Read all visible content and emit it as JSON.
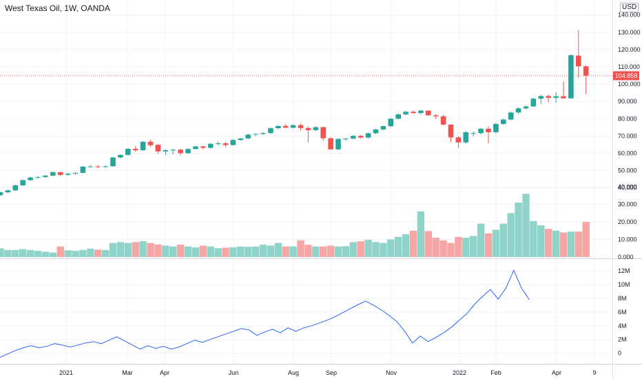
{
  "title": "West Texas Oil, 1W, OANDA",
  "currency": "USD",
  "price_label": "104.858",
  "colors": {
    "up": "#26a69a",
    "down": "#ef5350",
    "up_vol": "#8fd3c9",
    "down_vol": "#f6a6a4",
    "line": "#2962ff",
    "grid": "#f0f3fa"
  },
  "chart_data": [
    {
      "type": "candlestick",
      "price_axis_ticks": [
        "140.000",
        "130.000",
        "120.000",
        "110.000",
        "100.000",
        "90.000",
        "80.000",
        "70.000",
        "60.000",
        "50.000",
        "40.000",
        "30.000",
        "20.000",
        "10.000",
        "0.000"
      ],
      "x_tick_labels": [
        "2021",
        "Mar",
        "Apr",
        "Jun",
        "Aug",
        "Sep",
        "Nov",
        "2022",
        "Feb",
        "Apr",
        "9"
      ],
      "last_price": 104.858,
      "ohlc": [
        [
          35.8,
          37.8,
          35.5,
          37.5
        ],
        [
          37.5,
          38.9,
          36.9,
          38.6
        ],
        [
          38.6,
          41.9,
          38.2,
          41.5
        ],
        [
          41.5,
          44.8,
          41.2,
          44.5
        ],
        [
          44.5,
          46.5,
          44.0,
          46.0
        ],
        [
          46.0,
          46.8,
          45.3,
          46.3
        ],
        [
          46.3,
          47.5,
          45.9,
          47.1
        ],
        [
          47.1,
          49.5,
          46.8,
          49.1
        ],
        [
          49.1,
          49.3,
          46.8,
          47.5
        ],
        [
          47.6,
          48.6,
          47.1,
          48.3
        ],
        [
          48.3,
          49.1,
          47.7,
          48.7
        ],
        [
          48.7,
          52.6,
          48.4,
          52.3
        ],
        [
          52.3,
          53.2,
          51.8,
          52.4
        ],
        [
          52.4,
          53.3,
          51.5,
          52.2
        ],
        [
          52.2,
          53.1,
          51.7,
          52.5
        ],
        [
          52.5,
          57.9,
          52.3,
          57.6
        ],
        [
          57.6,
          59.4,
          57.1,
          59.1
        ],
        [
          59.1,
          63.0,
          58.7,
          62.6
        ],
        [
          62.6,
          64.2,
          60.8,
          61.8
        ],
        [
          61.8,
          67.1,
          61.4,
          66.7
        ],
        [
          66.7,
          67.8,
          63.8,
          64.7
        ],
        [
          64.9,
          65.5,
          59.7,
          61.1
        ],
        [
          61.1,
          62.2,
          58.8,
          61.8
        ],
        [
          61.9,
          62.6,
          59.4,
          62.1
        ],
        [
          62.1,
          62.7,
          58.9,
          60.1
        ],
        [
          60.1,
          63.0,
          59.6,
          62.5
        ],
        [
          62.5,
          64.4,
          62.2,
          64.0
        ],
        [
          64.0,
          64.4,
          62.3,
          63.2
        ],
        [
          63.2,
          66.0,
          62.7,
          65.5
        ],
        [
          65.5,
          66.7,
          64.7,
          65.8
        ],
        [
          65.8,
          66.5,
          63.6,
          64.8
        ],
        [
          64.8,
          68.2,
          64.5,
          67.7
        ],
        [
          67.7,
          68.9,
          67.2,
          68.6
        ],
        [
          68.6,
          71.3,
          68.2,
          70.8
        ],
        [
          70.8,
          71.5,
          69.9,
          71.2
        ],
        [
          71.2,
          72.2,
          70.6,
          71.7
        ],
        [
          71.7,
          74.9,
          71.2,
          74.5
        ],
        [
          74.5,
          76.2,
          74.0,
          75.8
        ],
        [
          75.8,
          76.9,
          74.5,
          74.8
        ],
        [
          74.8,
          76.8,
          74.3,
          76.3
        ],
        [
          76.3,
          77.2,
          73.1,
          74.6
        ],
        [
          74.6,
          75.6,
          66.3,
          73.4
        ],
        [
          73.4,
          75.7,
          72.8,
          75.1
        ],
        [
          75.1,
          75.5,
          67.2,
          68.7
        ],
        [
          68.7,
          69.4,
          62.0,
          62.3
        ],
        [
          62.3,
          68.7,
          61.9,
          68.3
        ],
        [
          68.3,
          69.0,
          67.2,
          68.5
        ],
        [
          68.5,
          70.5,
          68.2,
          70.1
        ],
        [
          70.1,
          70.6,
          68.5,
          69.1
        ],
        [
          69.1,
          72.0,
          68.5,
          71.6
        ],
        [
          71.6,
          74.2,
          71.1,
          73.8
        ],
        [
          73.8,
          76.1,
          73.4,
          75.7
        ],
        [
          75.7,
          80.4,
          75.2,
          80.0
        ],
        [
          80.0,
          83.1,
          79.6,
          82.5
        ],
        [
          82.5,
          84.5,
          82.1,
          84.0
        ],
        [
          84.0,
          84.7,
          82.9,
          83.3
        ],
        [
          83.3,
          85.1,
          82.4,
          84.7
        ],
        [
          84.7,
          84.8,
          81.5,
          82.0
        ],
        [
          82.0,
          82.6,
          79.7,
          81.4
        ],
        [
          81.4,
          82.3,
          76.1,
          76.6
        ],
        [
          76.6,
          76.9,
          66.5,
          69.2
        ],
        [
          69.2,
          69.8,
          63.1,
          66.3
        ],
        [
          66.3,
          72.9,
          65.5,
          72.2
        ],
        [
          71.7,
          72.7,
          69.7,
          71.7
        ],
        [
          71.7,
          74.6,
          70.9,
          74.2
        ],
        [
          74.2,
          75.6,
          65.8,
          72.2
        ],
        [
          72.2,
          77.6,
          71.4,
          77.0
        ],
        [
          77.0,
          80.1,
          76.4,
          79.5
        ],
        [
          79.5,
          84.0,
          79.1,
          83.6
        ],
        [
          83.6,
          86.5,
          82.7,
          86.0
        ],
        [
          86.0,
          87.6,
          85.2,
          87.1
        ],
        [
          87.1,
          92.0,
          86.8,
          91.6
        ],
        [
          91.6,
          93.8,
          88.6,
          93.1
        ],
        [
          93.1,
          94.0,
          89.5,
          92.1
        ],
        [
          92.1,
          95.3,
          89.2,
          93.0
        ],
        [
          93.0,
          101.6,
          91.5,
          91.8
        ],
        [
          91.8,
          117.4,
          91.5,
          116.7
        ],
        [
          116.5,
          131.3,
          103.7,
          110.3
        ],
        [
          110.3,
          111.0,
          94.0,
          104.9
        ]
      ],
      "volume_axis_ticks": [
        "40.000",
        "30.000",
        "20.000",
        "10.000",
        "0.000"
      ],
      "volume_thousands": [
        5,
        4,
        4,
        4.5,
        4,
        3.5,
        3,
        2.5,
        6,
        3.8,
        3.5,
        4,
        4.8,
        4.2,
        4,
        8,
        8.5,
        8,
        8.5,
        9,
        8,
        7.2,
        6.5,
        6,
        7,
        6,
        5.5,
        6.5,
        6,
        5,
        5.3,
        5.5,
        6,
        5.8,
        6,
        7,
        6.5,
        8,
        6,
        6,
        9.5,
        7,
        6,
        6,
        6.5,
        6,
        6.2,
        8.5,
        9,
        9.8,
        8.5,
        8,
        10,
        11.5,
        13,
        15,
        26,
        14.8,
        11,
        9.5,
        8,
        11.5,
        11,
        12,
        19,
        13.5,
        15.5,
        19,
        25,
        31,
        36,
        20.5,
        18,
        16,
        15,
        14,
        14.5,
        14.5,
        20
      ],
      "indicator_axis_ticks": [
        "12M",
        "10M",
        "8M",
        "6M",
        "4M",
        "2M",
        "0"
      ],
      "indicator_millions": [
        -0.6,
        -0.1,
        0.4,
        0.8,
        1.1,
        0.8,
        1.0,
        1.4,
        1.2,
        0.9,
        1.2,
        1.5,
        1.7,
        1.4,
        1.9,
        2.4,
        1.8,
        1.2,
        0.6,
        1.1,
        0.7,
        1.0,
        0.6,
        0.9,
        1.4,
        1.9,
        1.6,
        2.0,
        2.4,
        2.8,
        3.2,
        3.6,
        3.4,
        2.6,
        3.1,
        3.5,
        3.0,
        3.7,
        3.2,
        3.7,
        4.0,
        4.4,
        4.8,
        5.3,
        5.9,
        6.5,
        7.1,
        7.6,
        7.0,
        6.3,
        5.5,
        4.6,
        3.2,
        1.5,
        2.5,
        1.7,
        2.3,
        3.0,
        3.8,
        4.8,
        5.8,
        7.2,
        8.3,
        9.3,
        7.9,
        9.5,
        12.1,
        9.5,
        7.8
      ]
    }
  ]
}
